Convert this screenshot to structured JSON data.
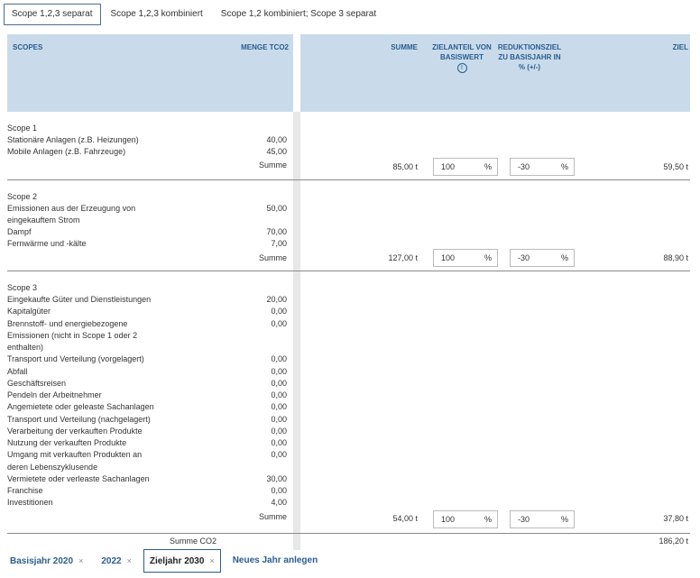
{
  "top_tabs": [
    "Scope 1,2,3 separat",
    "Scope 1,2,3 kombiniert",
    "Scope 1,2 kombiniert; Scope 3 separat"
  ],
  "header": {
    "scopes": "SCOPES",
    "menge": "MENGE TCO2",
    "summe": "SUMME",
    "zielanteil": "ZIELANTEIL VON BASISWERT",
    "info_icon": "info-icon",
    "reduktion": "REDUKTIONSZIEL ZU BASISJAHR IN % (+/-)",
    "ziel": "ZIEL"
  },
  "scope1": {
    "title": "Scope 1",
    "items": [
      {
        "label": "Stationäre Anlagen (z.B. Heizungen)",
        "value": "40,00"
      },
      {
        "label": "Mobile Anlagen (z.B. Fahrzeuge)",
        "value": "45,00"
      }
    ],
    "summe_label": "Summe",
    "summe": "85,00 t",
    "anteil": "100",
    "anteil_unit": "%",
    "reduktion": "-30",
    "reduktion_unit": "%",
    "ziel": "59,50 t"
  },
  "scope2": {
    "title": "Scope 2",
    "items": [
      {
        "label": "Emissionen aus der Erzeugung von",
        "value": "50,00"
      },
      {
        "label": "eingekauftem Strom",
        "value": ""
      },
      {
        "label": "Dampf",
        "value": "70,00"
      },
      {
        "label": "Fernwärme und -kälte",
        "value": "7,00"
      }
    ],
    "summe_label": "Summe",
    "summe": "127,00 t",
    "anteil": "100",
    "anteil_unit": "%",
    "reduktion": "-30",
    "reduktion_unit": "%",
    "ziel": "88,90 t"
  },
  "scope3": {
    "title": "Scope 3",
    "items": [
      {
        "label": "Eingekaufte Güter und Dienstleistungen",
        "value": "20,00"
      },
      {
        "label": "Kapitalgüter",
        "value": "0,00"
      },
      {
        "label": "Brennstoff- und energiebezogene",
        "value": "0,00"
      },
      {
        "label": "Emissionen (nicht in Scope 1 oder 2",
        "value": ""
      },
      {
        "label": "enthalten)",
        "value": ""
      },
      {
        "label": "Transport und Verteilung (vorgelagert)",
        "value": "0,00"
      },
      {
        "label": "Abfall",
        "value": "0,00"
      },
      {
        "label": "Geschäftsreisen",
        "value": "0,00"
      },
      {
        "label": "Pendeln der Arbeitnehmer",
        "value": "0,00"
      },
      {
        "label": "Angemietete oder geleaste Sachanlagen",
        "value": "0,00"
      },
      {
        "label": "Transport und Verteilung (nachgelagert)",
        "value": "0,00"
      },
      {
        "label": "Verarbeitung der verkauften Produkte",
        "value": "0,00"
      },
      {
        "label": "Nutzung der verkauften Produkte",
        "value": "0,00"
      },
      {
        "label": "Umgang mit verkauften Produkten an",
        "value": "0,00"
      },
      {
        "label": "deren Lebenszyklusende",
        "value": ""
      },
      {
        "label": "Vermietete oder verleaste Sachanlagen",
        "value": "30,00"
      },
      {
        "label": "Franchise",
        "value": "0,00"
      },
      {
        "label": "Investitionen",
        "value": "4,00"
      }
    ],
    "summe_label": "Summe",
    "summe": "54,00 t",
    "anteil": "100",
    "anteil_unit": "%",
    "reduktion": "-30",
    "reduktion_unit": "%",
    "ziel": "37,80 t"
  },
  "total": {
    "label": "Summe CO2",
    "value": "186,20 t"
  },
  "bottom_tabs": [
    {
      "label": "Basisjahr 2020",
      "close": "×"
    },
    {
      "label": "2022",
      "close": "×"
    },
    {
      "label": "Zieljahr 2030",
      "close": "×"
    },
    {
      "label": "Neues Jahr anlegen",
      "close": ""
    }
  ]
}
